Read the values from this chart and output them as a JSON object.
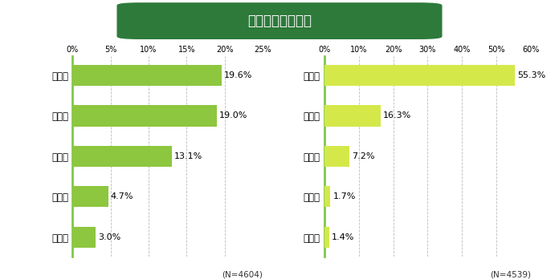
{
  "title": "産地イメージ全国",
  "title_bg_color": "#2d7a3a",
  "title_text_color": "#ffffff",
  "background_color": "#ffffff",
  "left_chart": {
    "categories": [
      "群馬県",
      "埼玉県",
      "京都府",
      "千葉県",
      "茨城県"
    ],
    "values": [
      19.6,
      19.0,
      13.1,
      4.7,
      3.0
    ],
    "bar_color": "#8dc63f",
    "xlim": [
      0,
      25
    ],
    "xticks": [
      0,
      5,
      10,
      15,
      20,
      25
    ],
    "n_label": "(N=4604)"
  },
  "right_chart": {
    "categories": [
      "北海道",
      "茨城県",
      "静岡県",
      "愛知県",
      "熊本県"
    ],
    "values": [
      55.3,
      16.3,
      7.2,
      1.7,
      1.4
    ],
    "bar_color": "#d4e84a",
    "xlim": [
      0,
      60
    ],
    "xticks": [
      0,
      10,
      20,
      30,
      40,
      50,
      60
    ],
    "n_label": "(N=4539)"
  },
  "axis_line_color": "#7ec84a",
  "grid_color": "#bbbbbb",
  "value_fontsize": 8,
  "tick_fontsize": 7,
  "category_fontsize": 8.5,
  "n_fontsize": 7.5
}
